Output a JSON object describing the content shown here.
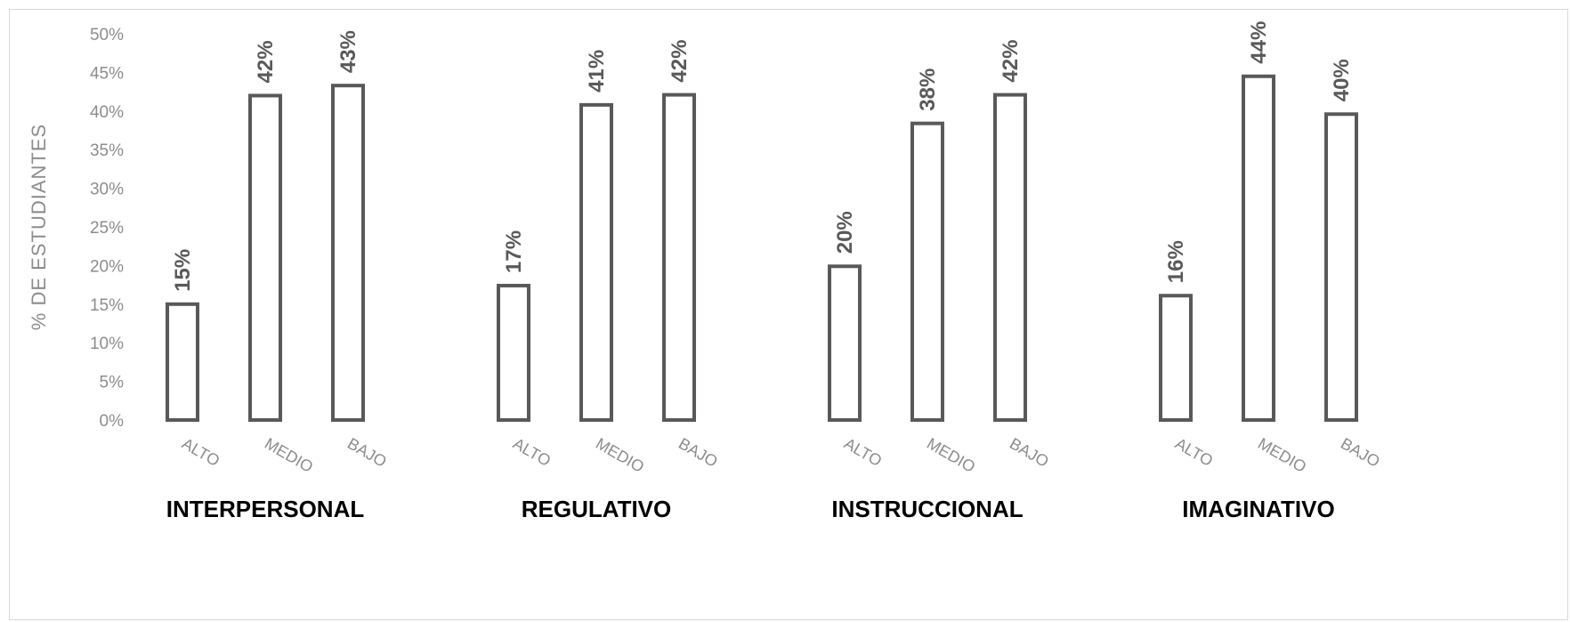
{
  "chart_data": {
    "type": "bar",
    "ylabel": "% DE ESTUDIANTES",
    "ylim": [
      0,
      50
    ],
    "y_ticks": [
      "0%",
      "5%",
      "10%",
      "15%",
      "20%",
      "25%",
      "30%",
      "35%",
      "40%",
      "45%",
      "50%"
    ],
    "categories": [
      "ALTO",
      "MEDIO",
      "BAJO"
    ],
    "groups": [
      {
        "name": "INTERPERSONAL",
        "values": [
          15,
          42,
          43.3
        ],
        "labels": [
          "15%",
          "42%",
          "43%"
        ]
      },
      {
        "name": "REGULATIVO",
        "values": [
          17.4,
          40.8,
          42.1
        ],
        "labels": [
          "17%",
          "41%",
          "42%"
        ]
      },
      {
        "name": "INSTRUCCIONAL",
        "values": [
          19.9,
          38.4,
          42.1
        ],
        "labels": [
          "20%",
          "38%",
          "42%"
        ]
      },
      {
        "name": "IMAGINATIVO",
        "values": [
          16.1,
          44.5,
          39.6
        ],
        "labels": [
          "16%",
          "44%",
          "40%"
        ]
      }
    ],
    "grid": false,
    "legend": "none",
    "bar_fill": "#ffffff",
    "bar_stroke": "#595959"
  }
}
